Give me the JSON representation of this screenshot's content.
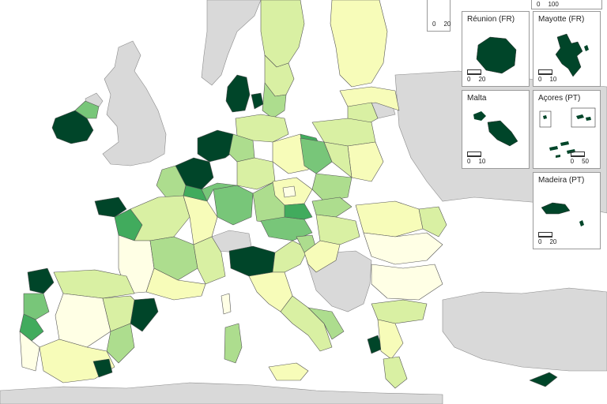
{
  "colors": {
    "sea": "#ffffff",
    "non_eu_land": "#d9d9d9",
    "border": "#666666",
    "class_1": "#ffffe5",
    "class_2": "#f7fcb9",
    "class_3": "#d9f0a3",
    "class_4": "#addd8e",
    "class_5": "#78c679",
    "class_6": "#41ab5d",
    "class_7": "#004529"
  },
  "insets": [
    {
      "id": "top-left",
      "title": "",
      "scale": [
        "0",
        "20"
      ]
    },
    {
      "id": "top-right",
      "title": "",
      "scale": [
        "0",
        "100"
      ]
    },
    {
      "id": "reunion",
      "title": "Réunion (FR)",
      "scale": [
        "0",
        "20"
      ]
    },
    {
      "id": "mayotte",
      "title": "Mayotte (FR)",
      "scale": [
        "0",
        "10"
      ]
    },
    {
      "id": "malta",
      "title": "Malta",
      "scale": [
        "0",
        "10"
      ]
    },
    {
      "id": "acores",
      "title": "Açores (PT)",
      "scale": [
        "0",
        "50"
      ]
    },
    {
      "id": "madeira",
      "title": "Madeira (PT)",
      "scale": [
        "0",
        "20"
      ]
    }
  ]
}
